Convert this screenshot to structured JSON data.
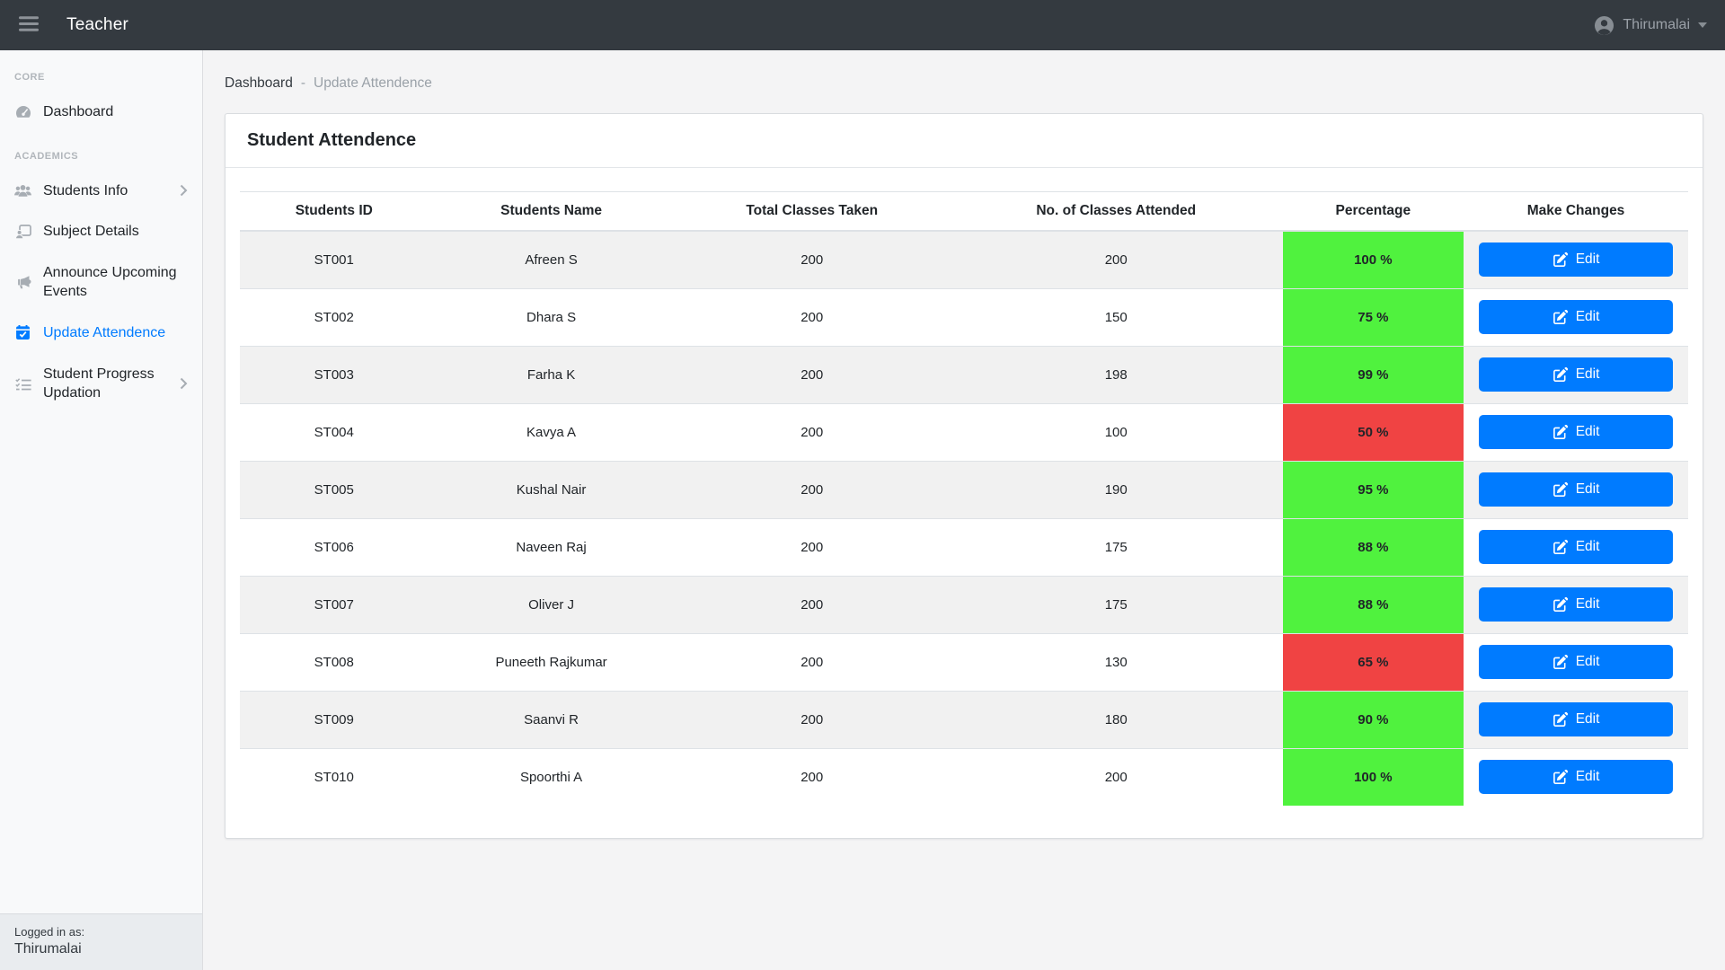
{
  "colors": {
    "primary": "#007bff",
    "percent_good": "#50f23e",
    "percent_bad": "#f04343"
  },
  "navbar": {
    "brand": "Teacher",
    "menu_icon": "bars-icon",
    "user": {
      "icon": "user-circle-icon",
      "name": "Thirumalai",
      "caret_icon": "caret-down-icon"
    }
  },
  "breadcrumb": {
    "items": [
      "Dashboard",
      "Update Attendence"
    ],
    "separator": "-"
  },
  "sidebar": {
    "sections": [
      {
        "heading": "CORE",
        "items": [
          {
            "label": "Dashboard",
            "icon": "tachometer-icon",
            "active": false,
            "has_submenu": false
          }
        ]
      },
      {
        "heading": "ACADEMICS",
        "items": [
          {
            "label": "Students Info",
            "icon": "users-icon",
            "active": false,
            "has_submenu": true
          },
          {
            "label": "Subject Details",
            "icon": "user-card-icon",
            "active": false,
            "has_submenu": false
          },
          {
            "label": "Announce Upcoming Events",
            "icon": "bullhorn-icon",
            "active": false,
            "has_submenu": false
          },
          {
            "label": "Update Attendence",
            "icon": "calendar-check-icon",
            "active": true,
            "has_submenu": false
          },
          {
            "label": "Student Progress Updation",
            "icon": "list-check-icon",
            "active": false,
            "has_submenu": true
          }
        ]
      }
    ],
    "footer": {
      "label": "Logged in as:",
      "user": "Thirumalai"
    }
  },
  "page": {
    "card_title": "Student Attendence"
  },
  "table": {
    "headers": [
      "Students ID",
      "Students Name",
      "Total Classes Taken",
      "No. of Classes Attended",
      "Percentage",
      "Make Changes"
    ],
    "edit_label": "Edit",
    "edit_icon": "edit-icon",
    "rows": [
      {
        "id": "ST001",
        "name": "Afreen S",
        "total": "200",
        "attended": "200",
        "percentage": "100 %",
        "status": "good"
      },
      {
        "id": "ST002",
        "name": "Dhara S",
        "total": "200",
        "attended": "150",
        "percentage": "75 %",
        "status": "good"
      },
      {
        "id": "ST003",
        "name": "Farha K",
        "total": "200",
        "attended": "198",
        "percentage": "99 %",
        "status": "good"
      },
      {
        "id": "ST004",
        "name": "Kavya A",
        "total": "200",
        "attended": "100",
        "percentage": "50 %",
        "status": "bad"
      },
      {
        "id": "ST005",
        "name": "Kushal Nair",
        "total": "200",
        "attended": "190",
        "percentage": "95 %",
        "status": "good"
      },
      {
        "id": "ST006",
        "name": "Naveen Raj",
        "total": "200",
        "attended": "175",
        "percentage": "88 %",
        "status": "good"
      },
      {
        "id": "ST007",
        "name": "Oliver J",
        "total": "200",
        "attended": "175",
        "percentage": "88 %",
        "status": "good"
      },
      {
        "id": "ST008",
        "name": "Puneeth Rajkumar",
        "total": "200",
        "attended": "130",
        "percentage": "65 %",
        "status": "bad"
      },
      {
        "id": "ST009",
        "name": "Saanvi R",
        "total": "200",
        "attended": "180",
        "percentage": "90 %",
        "status": "good"
      },
      {
        "id": "ST010",
        "name": "Spoorthi A",
        "total": "200",
        "attended": "200",
        "percentage": "100 %",
        "status": "good"
      }
    ]
  }
}
